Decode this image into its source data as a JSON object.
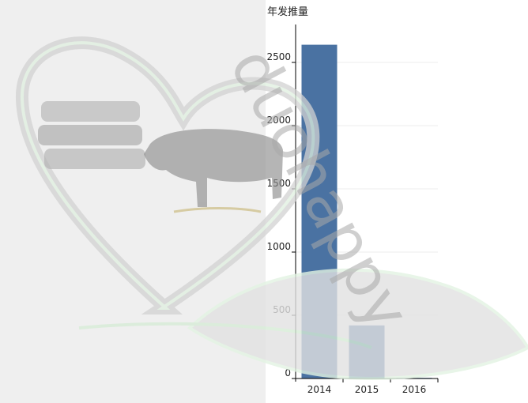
{
  "chart_data": {
    "type": "bar",
    "title": "年发推量",
    "categories": [
      "2014",
      "2015",
      "2016"
    ],
    "values": [
      2640,
      420,
      5
    ],
    "ylim": [
      0,
      2800
    ],
    "yticks": [
      0,
      500,
      1000,
      1500,
      2000,
      2500
    ],
    "grid": true,
    "colors": {
      "bar": "#4a72a2"
    }
  },
  "watermark": {
    "text": "duohappy"
  }
}
